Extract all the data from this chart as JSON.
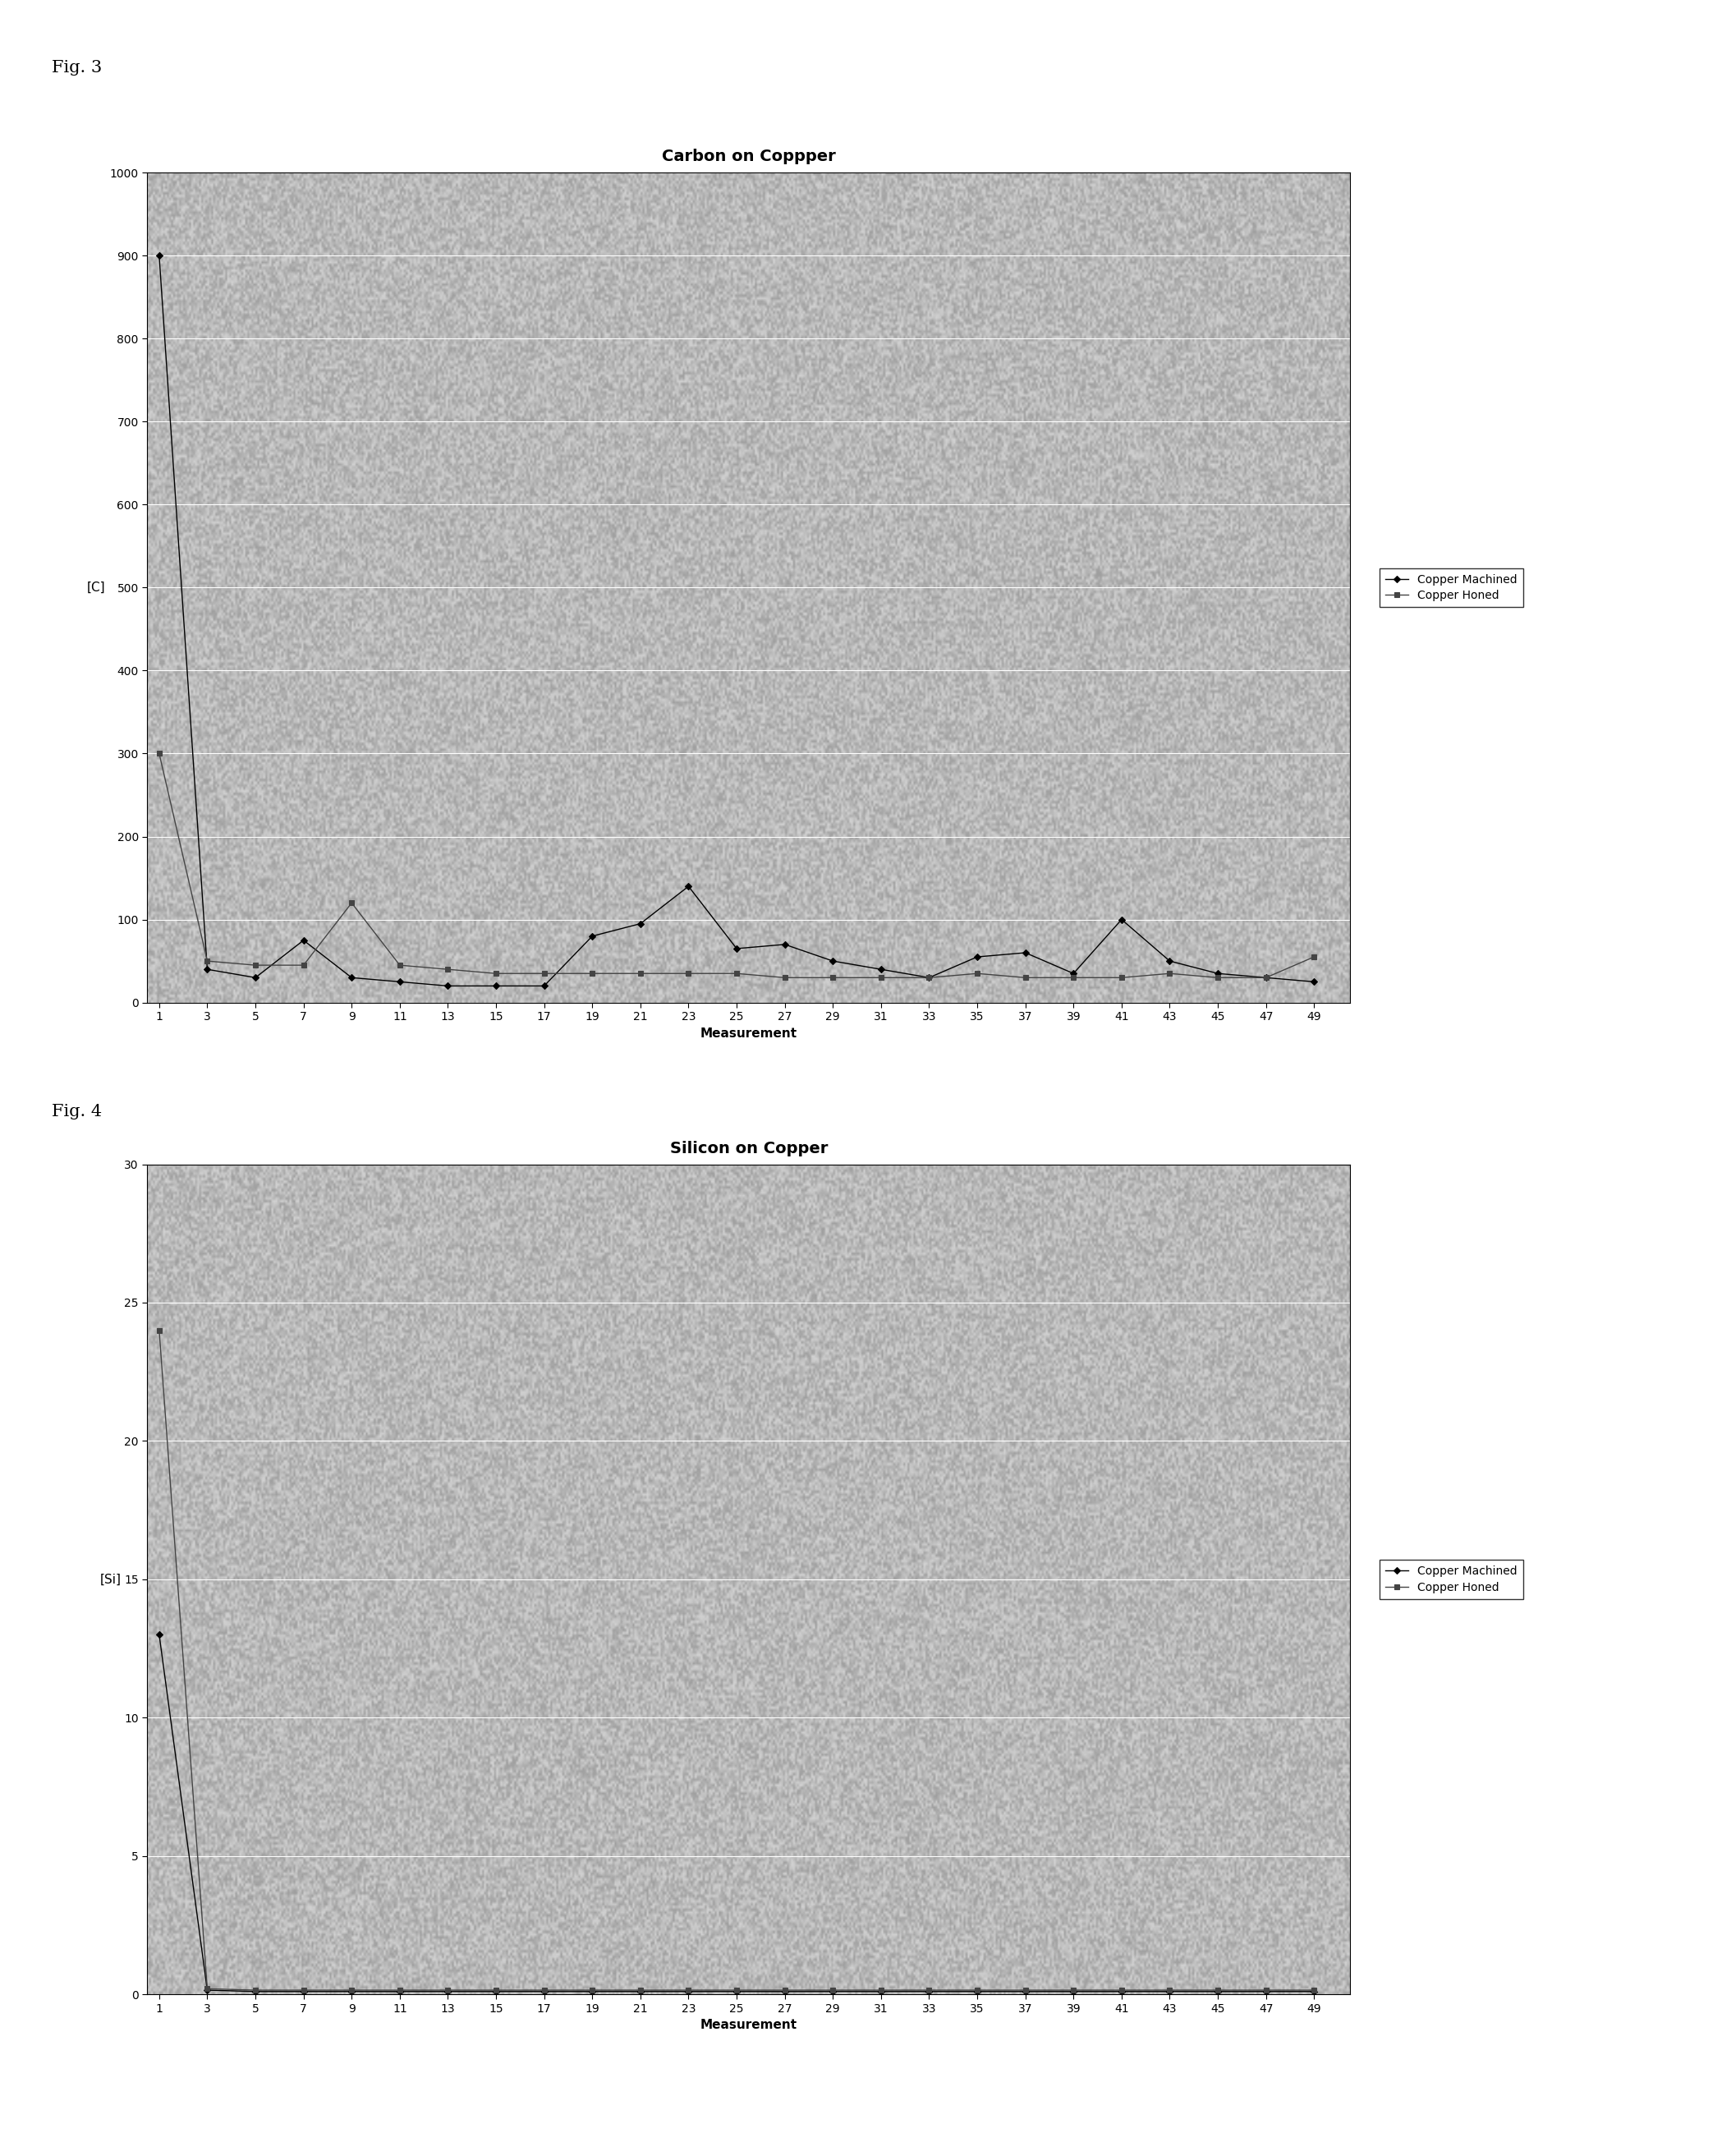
{
  "fig3_title": "Carbon on Coppper",
  "fig4_title": "Silicon on Copper",
  "fig3_ylabel": "[C]",
  "fig4_ylabel": "[Si]",
  "xlabel": "Measurement",
  "fig3_ylim": [
    0,
    1000
  ],
  "fig4_ylim": [
    0.0,
    30.0
  ],
  "fig3_yticks": [
    0,
    100,
    200,
    300,
    400,
    500,
    600,
    700,
    800,
    900,
    1000
  ],
  "fig4_yticks": [
    0.0,
    5.0,
    10.0,
    15.0,
    20.0,
    25.0,
    30.0
  ],
  "xtick_labels": [
    "1",
    "3",
    "5",
    "7",
    "9",
    "11",
    "13",
    "15",
    "17",
    "19",
    "21",
    "23",
    "25",
    "27",
    "29",
    "31",
    "33",
    "35",
    "37",
    "39",
    "41",
    "43",
    "45",
    "47",
    "49"
  ],
  "x_values": [
    1,
    3,
    5,
    7,
    9,
    11,
    13,
    15,
    17,
    19,
    21,
    23,
    25,
    27,
    29,
    31,
    33,
    35,
    37,
    39,
    41,
    43,
    45,
    47,
    49
  ],
  "fig3_machined": [
    900,
    40,
    30,
    75,
    30,
    25,
    20,
    20,
    20,
    80,
    95,
    140,
    65,
    70,
    50,
    40,
    30,
    55,
    60,
    35,
    100,
    50,
    35,
    30,
    25
  ],
  "fig3_honed": [
    300,
    50,
    45,
    45,
    120,
    45,
    40,
    35,
    35,
    35,
    35,
    35,
    35,
    30,
    30,
    30,
    30,
    35,
    30,
    30,
    30,
    35,
    30,
    30,
    55
  ],
  "fig4_machined": [
    13.0,
    0.15,
    0.1,
    0.1,
    0.1,
    0.1,
    0.1,
    0.1,
    0.1,
    0.1,
    0.1,
    0.1,
    0.1,
    0.1,
    0.1,
    0.1,
    0.1,
    0.1,
    0.1,
    0.1,
    0.1,
    0.1,
    0.1,
    0.1,
    0.1
  ],
  "fig4_honed": [
    24.0,
    0.2,
    0.15,
    0.15,
    0.15,
    0.15,
    0.15,
    0.15,
    0.15,
    0.15,
    0.15,
    0.15,
    0.15,
    0.15,
    0.15,
    0.15,
    0.15,
    0.15,
    0.15,
    0.15,
    0.15,
    0.15,
    0.15,
    0.15,
    0.15
  ],
  "machined_color": "#000000",
  "honed_color": "#444444",
  "background_color": "#b8b8b8",
  "grid_color": "#ffffff",
  "legend_machined": "Copper Machined",
  "legend_honed": "Copper Honed",
  "fig3_label": "Fig. 3",
  "fig4_label": "Fig. 4",
  "title_fontsize": 14,
  "axis_fontsize": 11,
  "tick_fontsize": 10,
  "legend_fontsize": 10,
  "fig_label_fontsize": 15
}
